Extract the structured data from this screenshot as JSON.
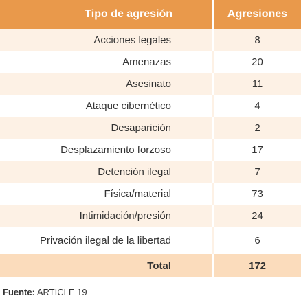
{
  "table": {
    "header": [
      "Tipo de agresión",
      "Agresiones"
    ],
    "rows": [
      [
        "Acciones legales",
        8
      ],
      [
        "Amenazas",
        20
      ],
      [
        "Asesinato",
        11
      ],
      [
        "Ataque cibernético",
        4
      ],
      [
        "Desaparición",
        2
      ],
      [
        "Desplazamiento forzoso",
        17
      ],
      [
        "Detención ilegal",
        7
      ],
      [
        "Física/material",
        73
      ],
      [
        "Intimidación/presión",
        24
      ],
      [
        "Privación ilegal de la libertad",
        6
      ]
    ],
    "total": [
      "Total",
      172
    ]
  },
  "source": {
    "label": "Fuente:",
    "text": "ARTICLE 19"
  }
}
